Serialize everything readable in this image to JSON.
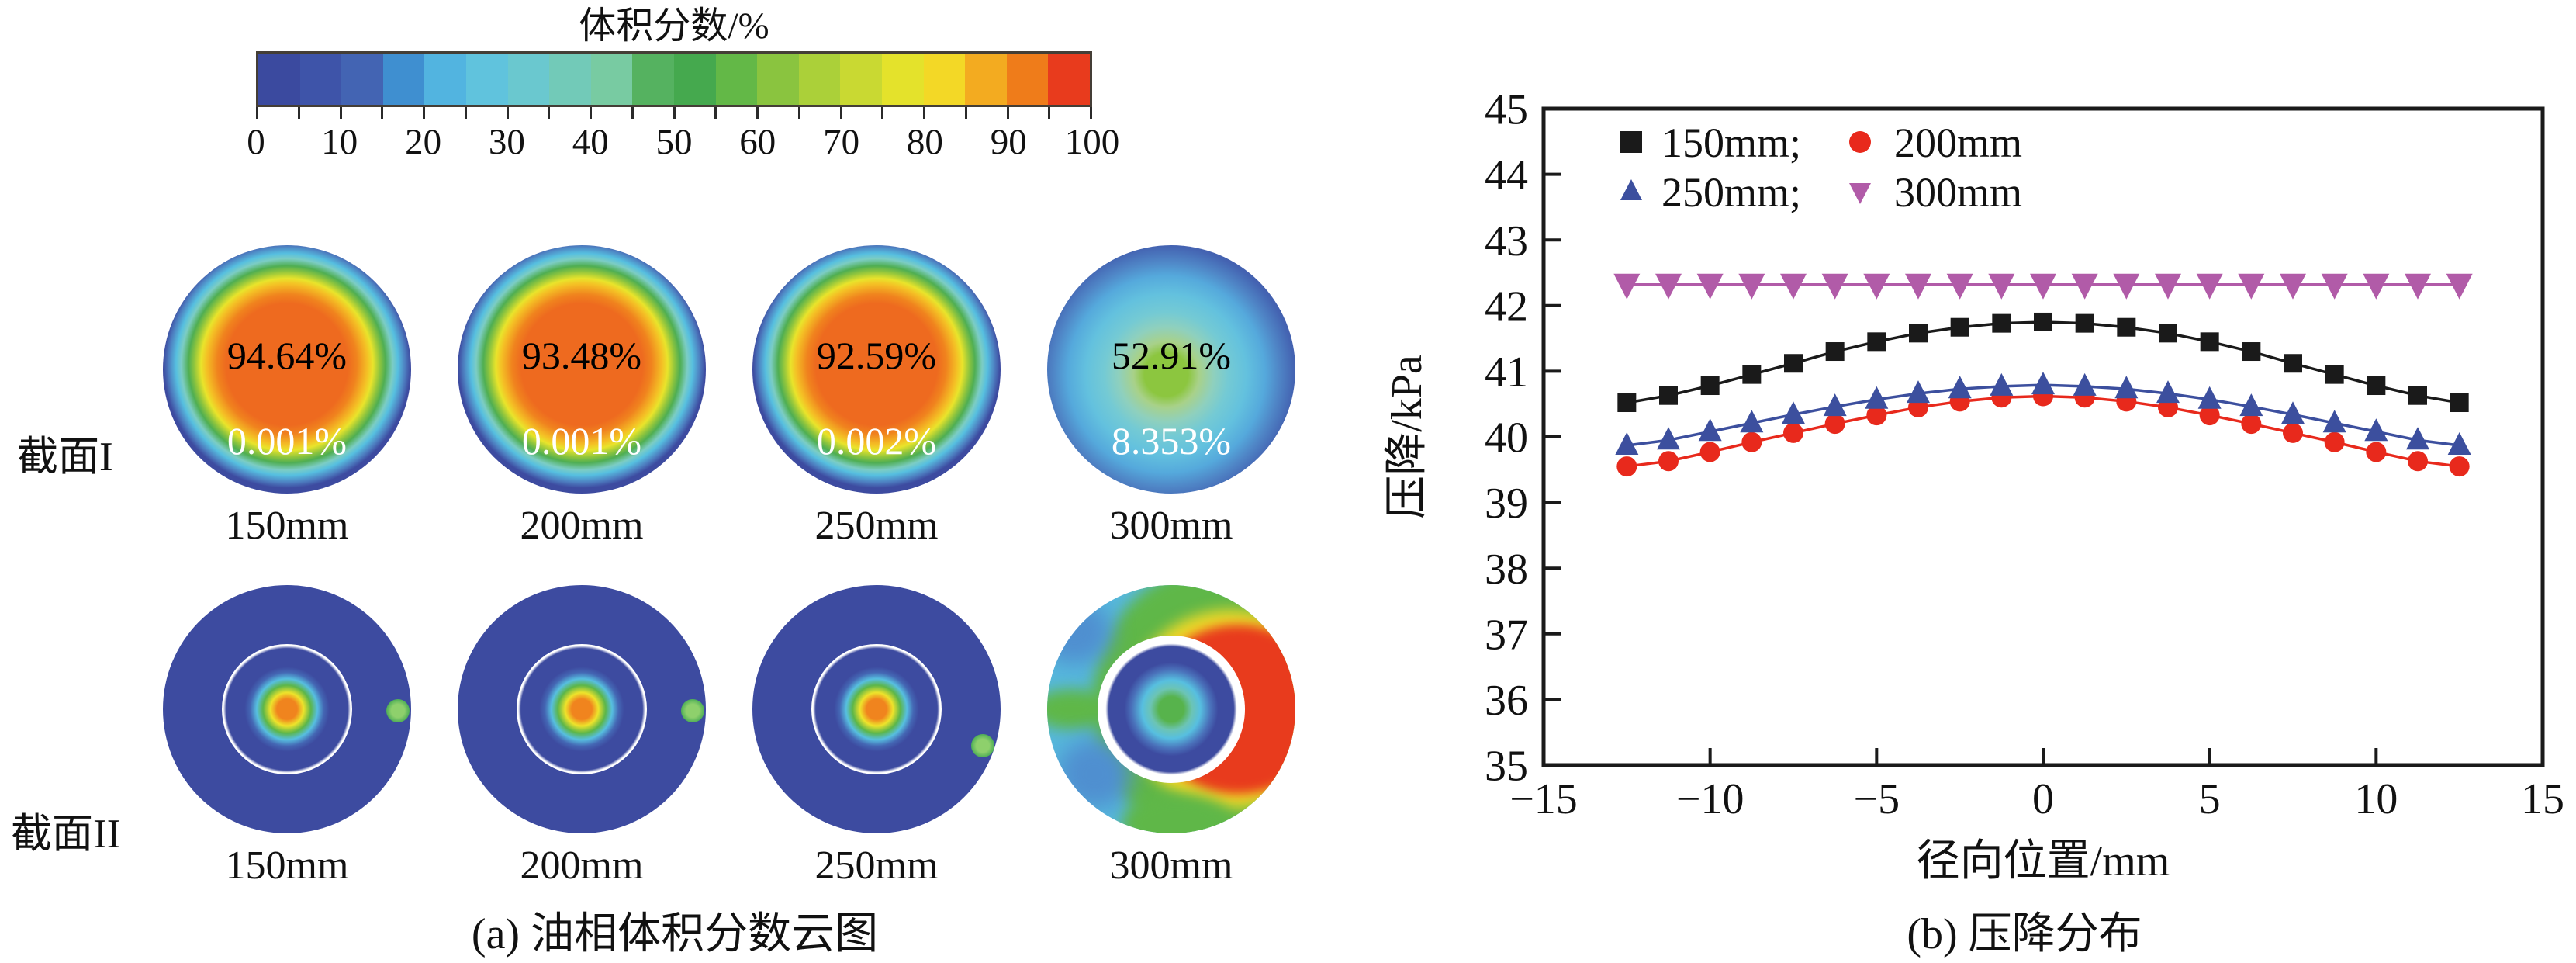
{
  "panel_a": {
    "caption": "(a) 油相体积分数云图",
    "colorbar": {
      "title": "体积分数/%",
      "tick_labels": [
        "0",
        "10",
        "20",
        "30",
        "40",
        "50",
        "60",
        "70",
        "80",
        "90",
        "100"
      ],
      "segment_colors": [
        "#3b4a9f",
        "#3e54a9",
        "#4364b3",
        "#3f8fd0",
        "#52b4e0",
        "#60c3dd",
        "#6ac8cf",
        "#72cab8",
        "#78cba2",
        "#55b260",
        "#45a94e",
        "#63b847",
        "#8ac43f",
        "#abd039",
        "#c9d932",
        "#e4e22b",
        "#f3d826",
        "#f3ab20",
        "#ef7c1a",
        "#e83b1d"
      ]
    },
    "rows": [
      {
        "row_label": "截面I",
        "circles": [
          {
            "diameter_label": "150mm",
            "top_value": "94.64%",
            "bottom_value": "0.001%"
          },
          {
            "diameter_label": "200mm",
            "top_value": "93.48%",
            "bottom_value": "0.001%"
          },
          {
            "diameter_label": "250mm",
            "top_value": "92.59%",
            "bottom_value": "0.002%"
          },
          {
            "diameter_label": "300mm",
            "top_value": "52.91%",
            "bottom_value": "8.353%"
          }
        ]
      },
      {
        "row_label": "截面II",
        "circles": [
          {
            "diameter_label": "150mm"
          },
          {
            "diameter_label": "200mm"
          },
          {
            "diameter_label": "250mm"
          },
          {
            "diameter_label": "300mm"
          }
        ]
      }
    ]
  },
  "panel_b": {
    "caption": "(b) 压降分布"
  },
  "chart_data": {
    "type": "line",
    "title": "",
    "xlabel": "径向位置/mm",
    "ylabel": "压降/kPa",
    "xlim": [
      -15,
      15
    ],
    "ylim": [
      35,
      45
    ],
    "x_ticks": [
      -15,
      -10,
      -5,
      0,
      5,
      10,
      15
    ],
    "y_ticks": [
      35,
      36,
      37,
      38,
      39,
      40,
      41,
      42,
      43,
      44,
      45
    ],
    "grid": false,
    "legend_position": "top-left-inside",
    "legend_rows": [
      [
        "150mm;",
        "200mm"
      ],
      [
        "250mm;",
        "300mm"
      ]
    ],
    "x": [
      -12.5,
      -11.25,
      -10,
      -8.75,
      -7.5,
      -6.25,
      -5,
      -3.75,
      -2.5,
      -1.25,
      0,
      1.25,
      2.5,
      3.75,
      5,
      6.25,
      7.5,
      8.75,
      10,
      11.25,
      12.5
    ],
    "series": [
      {
        "name": "150mm",
        "marker": "square",
        "color": "#1a1a1a",
        "values": [
          40.52,
          40.63,
          40.78,
          40.95,
          41.12,
          41.3,
          41.45,
          41.58,
          41.67,
          41.73,
          41.75,
          41.73,
          41.67,
          41.58,
          41.45,
          41.3,
          41.12,
          40.95,
          40.78,
          40.63,
          40.52
        ]
      },
      {
        "name": "200mm",
        "marker": "circle",
        "color": "#e8291c",
        "values": [
          39.55,
          39.63,
          39.77,
          39.92,
          40.06,
          40.2,
          40.33,
          40.45,
          40.54,
          40.6,
          40.62,
          40.6,
          40.54,
          40.45,
          40.33,
          40.2,
          40.06,
          39.92,
          39.77,
          39.63,
          39.55
        ]
      },
      {
        "name": "250mm",
        "marker": "triangle-up",
        "color": "#3c4f9e",
        "values": [
          39.87,
          39.95,
          40.08,
          40.21,
          40.34,
          40.46,
          40.57,
          40.66,
          40.73,
          40.77,
          40.79,
          40.77,
          40.73,
          40.66,
          40.57,
          40.46,
          40.34,
          40.21,
          40.08,
          39.95,
          39.87
        ]
      },
      {
        "name": "300mm",
        "marker": "triangle-down",
        "color": "#b15ba8",
        "values": [
          42.32,
          42.32,
          42.32,
          42.32,
          42.32,
          42.32,
          42.32,
          42.32,
          42.32,
          42.32,
          42.32,
          42.32,
          42.32,
          42.32,
          42.32,
          42.32,
          42.32,
          42.32,
          42.32,
          42.32,
          42.32
        ]
      }
    ]
  }
}
